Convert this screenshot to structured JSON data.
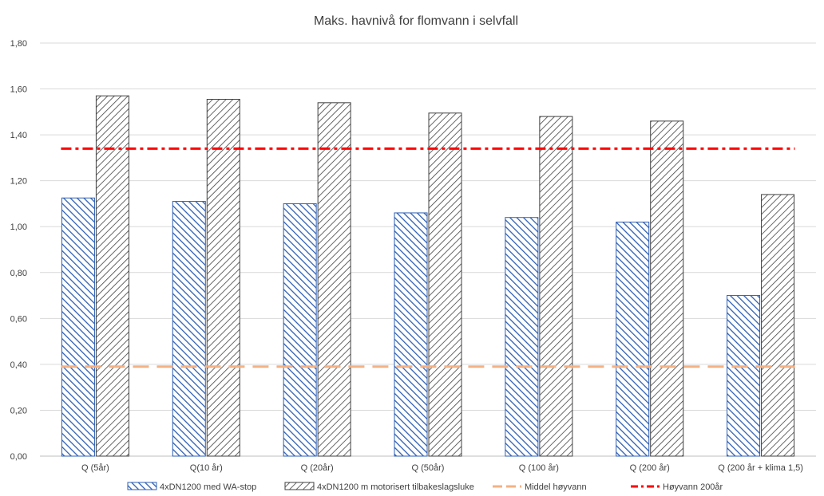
{
  "chart_data": {
    "type": "bar",
    "title": "Maks. havnivå for flomvann i selvfall",
    "categories": [
      "Q (5år)",
      "Q(10 år)",
      "Q (20år)",
      "Q (50år)",
      "Q (100 år)",
      "Q (200 år)",
      "Q (200 år + klima 1,5)"
    ],
    "series": [
      {
        "name": "4xDN1200 med WA-stop",
        "type": "bar",
        "values": [
          1.125,
          1.11,
          1.1,
          1.06,
          1.04,
          1.02,
          0.7
        ],
        "color": "#2E5FB4",
        "pattern": "backslash-hatch"
      },
      {
        "name": "4xDN1200 m motorisert tilbakeslagsluke",
        "type": "bar",
        "values": [
          1.57,
          1.555,
          1.54,
          1.495,
          1.48,
          1.46,
          1.14
        ],
        "color": "#404040",
        "pattern": "slash-hatch"
      },
      {
        "name": "Middel høyvann",
        "type": "line",
        "value": 0.39,
        "color": "#F4B183",
        "style": "long-dash"
      },
      {
        "name": "Høyvann 200år",
        "type": "line",
        "value": 1.34,
        "color": "#FF0000",
        "style": "dash-dot"
      }
    ],
    "yticks": [
      "0,00",
      "0,20",
      "0,40",
      "0,60",
      "0,80",
      "1,00",
      "1,20",
      "1,40",
      "1,60",
      "1,80"
    ],
    "ylim": [
      0,
      1.8
    ],
    "grid": true,
    "legend": "bottom"
  }
}
